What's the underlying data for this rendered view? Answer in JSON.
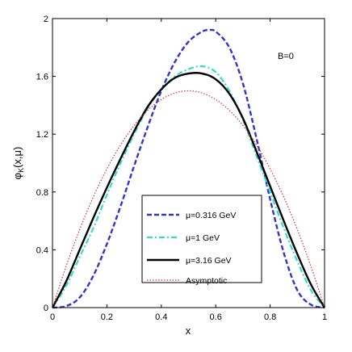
{
  "chart_data": {
    "type": "line",
    "title": "",
    "xlabel": "x",
    "ylabel": "φK(x,μ)",
    "ylabel_main": "φ",
    "ylabel_sub": "K",
    "ylabel_rest": "(x,μ)",
    "xlim": [
      0,
      1
    ],
    "ylim": [
      0,
      2
    ],
    "xticks": [
      0,
      0.2,
      0.4,
      0.6,
      0.8,
      1
    ],
    "xtick_labels": [
      "0",
      "0.2",
      "0.4",
      "0.6",
      "0.8",
      "1"
    ],
    "yticks": [
      0,
      0.4,
      0.8,
      1.2,
      1.6,
      2
    ],
    "ytick_labels": [
      "0",
      "0.4",
      "0.8",
      "1.2",
      "1.6",
      "2"
    ],
    "grid": false,
    "legend_position": "bottom-center",
    "annotation": "B=0",
    "series": [
      {
        "name": "μ=0.316 GeV",
        "color": "#3333cc",
        "style": "dashed",
        "x": [
          0,
          0.05,
          0.1,
          0.15,
          0.2,
          0.25,
          0.3,
          0.35,
          0.4,
          0.45,
          0.5,
          0.55,
          0.575,
          0.6,
          0.65,
          0.7,
          0.75,
          0.8,
          0.85,
          0.9,
          0.95,
          1
        ],
        "y": [
          0,
          0.01,
          0.07,
          0.22,
          0.44,
          0.7,
          0.98,
          1.25,
          1.5,
          1.7,
          1.84,
          1.91,
          1.92,
          1.91,
          1.8,
          1.55,
          1.17,
          0.75,
          0.38,
          0.12,
          0.02,
          0
        ]
      },
      {
        "name": "μ=1 GeV",
        "color": "#33ddcc",
        "style": "dashdot",
        "x": [
          0,
          0.05,
          0.1,
          0.15,
          0.2,
          0.25,
          0.3,
          0.35,
          0.4,
          0.45,
          0.5,
          0.55,
          0.6,
          0.65,
          0.7,
          0.75,
          0.8,
          0.85,
          0.9,
          0.95,
          1
        ],
        "y": [
          0,
          0.15,
          0.35,
          0.55,
          0.78,
          1.0,
          1.2,
          1.38,
          1.51,
          1.6,
          1.65,
          1.67,
          1.63,
          1.5,
          1.3,
          1.05,
          0.8,
          0.55,
          0.32,
          0.12,
          0
        ]
      },
      {
        "name": "μ=3.16 GeV",
        "color": "#000000",
        "style": "solid",
        "x": [
          0,
          0.05,
          0.1,
          0.15,
          0.2,
          0.25,
          0.3,
          0.35,
          0.4,
          0.45,
          0.5,
          0.55,
          0.6,
          0.65,
          0.7,
          0.75,
          0.8,
          0.85,
          0.9,
          0.95,
          1
        ],
        "y": [
          0,
          0.18,
          0.4,
          0.62,
          0.83,
          1.03,
          1.22,
          1.39,
          1.51,
          1.59,
          1.62,
          1.62,
          1.58,
          1.48,
          1.31,
          1.08,
          0.84,
          0.6,
          0.37,
          0.16,
          0
        ]
      },
      {
        "name": "Asymptotic",
        "color": "#cc3333",
        "style": "dotted",
        "x": [
          0,
          0.05,
          0.1,
          0.15,
          0.2,
          0.25,
          0.3,
          0.35,
          0.4,
          0.45,
          0.5,
          0.55,
          0.6,
          0.65,
          0.7,
          0.75,
          0.8,
          0.85,
          0.9,
          0.95,
          1
        ],
        "y": [
          0,
          0.285,
          0.54,
          0.765,
          0.96,
          1.125,
          1.26,
          1.365,
          1.44,
          1.485,
          1.5,
          1.485,
          1.44,
          1.365,
          1.26,
          1.125,
          0.96,
          0.765,
          0.54,
          0.285,
          0
        ]
      }
    ]
  }
}
